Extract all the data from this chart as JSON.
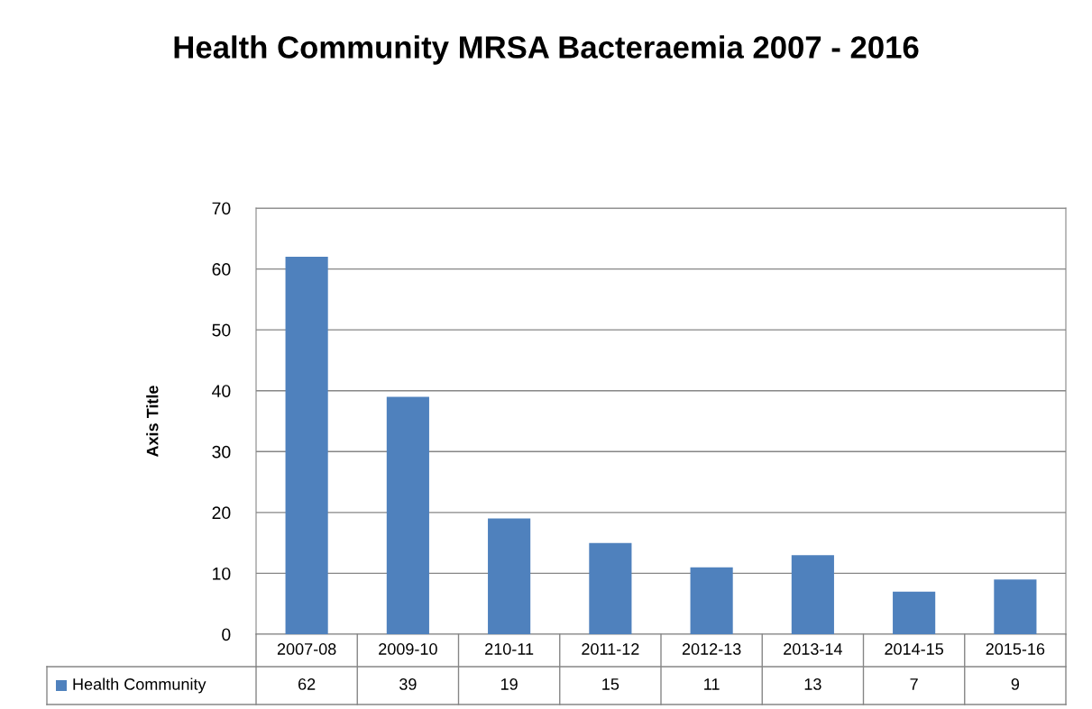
{
  "chart_data": {
    "type": "bar",
    "title": "Health Community MRSA Bacteraemia 2007 - 2016",
    "ylabel": "Axis Title",
    "categories": [
      "2007-08",
      "2009-10",
      "210-11",
      "2011-12",
      "2012-13",
      "2013-14",
      "2014-15",
      "2015-16"
    ],
    "series": [
      {
        "name": "Health Community",
        "color": "#4f81bd",
        "values": [
          62,
          39,
          19,
          15,
          11,
          13,
          7,
          9
        ]
      }
    ],
    "ylim": [
      0,
      70
    ],
    "yticks": [
      0,
      10,
      20,
      30,
      40,
      50,
      60,
      70
    ],
    "grid": "y",
    "data_labels": true,
    "legend": "bottom"
  }
}
